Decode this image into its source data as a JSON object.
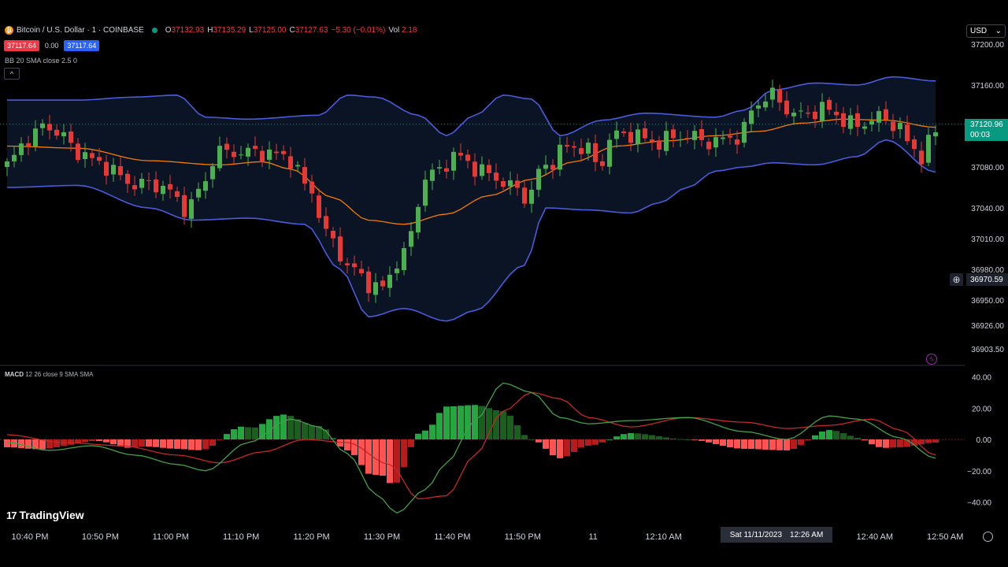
{
  "header": {
    "symbol": "Bitcoin / U.S. Dollar · 1 · COINBASE",
    "ohlc": [
      {
        "k": "O",
        "v": "37132.93"
      },
      {
        "k": "H",
        "v": "37135.29"
      },
      {
        "k": "L",
        "v": "37125.00"
      },
      {
        "k": "C",
        "v": "37127.63"
      }
    ],
    "change": "−5.30 (−0.01%)",
    "vol_label": "Vol",
    "vol_value": "2.18",
    "bid": "37117.64",
    "spread": "0.00",
    "ask": "37117.64",
    "bb_legend": "BB 20 SMA close 2.5 0",
    "collapse_glyph": "^",
    "macd_name": "MACD",
    "macd_params": "12 26 close 9 SMA SMA"
  },
  "currency": {
    "label": "USD",
    "chevron": "⌄"
  },
  "last_price": {
    "value": "37120.96",
    "countdown": "00:03"
  },
  "crosshair": {
    "price": "36970.59",
    "time": "Sat 11/11/2023",
    "clock": "12:26 AM"
  },
  "brand": {
    "logo": "17",
    "name": "TradingView"
  },
  "colors": {
    "up": "#4caf50",
    "down": "#e53935",
    "bb_band": "#4a5bdc",
    "bb_fill": "#0b1424",
    "bb_basis": "#f57c00",
    "macd_line": "#43a047",
    "signal_line": "#c62828",
    "hist_up_strong": "#26a641",
    "hist_up_weak": "#1b5e20",
    "hist_down_strong": "#ff5252",
    "hist_down_weak": "#b71c1c",
    "last_price_bg": "#089981"
  },
  "chart_data": [
    {
      "type": "candlestick",
      "title": "",
      "price_axis_ticks": [
        37200.0,
        37160.0,
        37120.0,
        37080.0,
        37040.0,
        37010.0,
        36980.0,
        36950.0,
        36926.0,
        36903.5
      ],
      "price_axis_labels": [
        "37200.00",
        "37160.00",
        "37120.00",
        "37080.00",
        "37040.00",
        "37010.00",
        "36980.00",
        "36950.00",
        "36926.00",
        "36903.50"
      ],
      "time_labels": [
        "10:40 PM",
        "10:50 PM",
        "11:00 PM",
        "11:10 PM",
        "11:20 PM",
        "11:30 PM",
        "11:40 PM",
        "11:50 PM",
        "11",
        "12:10 AM",
        "12:40 AM",
        "12:50 AM"
      ],
      "time_label_slots": [
        0,
        10,
        20,
        30,
        40,
        50,
        60,
        70,
        80,
        90,
        120,
        130
      ],
      "bb_basis_ctrl": [
        [
          0,
          37100
        ],
        [
          10,
          37098
        ],
        [
          20,
          37086
        ],
        [
          30,
          37082
        ],
        [
          36,
          37085
        ],
        [
          40,
          37078
        ],
        [
          46,
          37050
        ],
        [
          51,
          37028
        ],
        [
          56,
          37024
        ],
        [
          62,
          37034
        ],
        [
          68,
          37052
        ],
        [
          74,
          37068
        ],
        [
          80,
          37085
        ],
        [
          86,
          37100
        ],
        [
          93,
          37105
        ],
        [
          100,
          37110
        ],
        [
          106,
          37114
        ],
        [
          112,
          37122
        ],
        [
          118,
          37126
        ],
        [
          124,
          37125
        ],
        [
          131,
          37118
        ]
      ],
      "bb_upper_ctrl": [
        [
          0,
          37145
        ],
        [
          10,
          37145
        ],
        [
          18,
          37148
        ],
        [
          24,
          37150
        ],
        [
          28,
          37128
        ],
        [
          34,
          37126
        ],
        [
          44,
          37130
        ],
        [
          48,
          37150
        ],
        [
          52,
          37148
        ],
        [
          58,
          37130
        ],
        [
          62,
          37110
        ],
        [
          66,
          37130
        ],
        [
          70,
          37150
        ],
        [
          74,
          37146
        ],
        [
          78,
          37110
        ],
        [
          84,
          37125
        ],
        [
          90,
          37132
        ],
        [
          100,
          37128
        ],
        [
          104,
          37135
        ],
        [
          108,
          37155
        ],
        [
          114,
          37162
        ],
        [
          120,
          37160
        ],
        [
          125,
          37168
        ],
        [
          131,
          37164
        ]
      ],
      "bb_lower_ctrl": [
        [
          0,
          37060
        ],
        [
          10,
          37062
        ],
        [
          20,
          37040
        ],
        [
          26,
          37028
        ],
        [
          34,
          37030
        ],
        [
          42,
          37024
        ],
        [
          47,
          36980
        ],
        [
          51,
          36934
        ],
        [
          56,
          36942
        ],
        [
          62,
          36930
        ],
        [
          66,
          36940
        ],
        [
          73,
          36984
        ],
        [
          76,
          37040
        ],
        [
          82,
          37038
        ],
        [
          88,
          37035
        ],
        [
          92,
          37045
        ],
        [
          96,
          37060
        ],
        [
          100,
          37076
        ],
        [
          104,
          37080
        ],
        [
          108,
          37084
        ],
        [
          114,
          37082
        ],
        [
          120,
          37090
        ],
        [
          124,
          37106
        ],
        [
          131,
          37075
        ]
      ],
      "candles_ctrl": [
        [
          0,
          37080
        ],
        [
          4,
          37110
        ],
        [
          6,
          37120
        ],
        [
          8,
          37112
        ],
        [
          10,
          37096
        ],
        [
          14,
          37082
        ],
        [
          18,
          37064
        ],
        [
          22,
          37062
        ],
        [
          26,
          37040
        ],
        [
          28,
          37060
        ],
        [
          30,
          37094
        ],
        [
          36,
          37094
        ],
        [
          40,
          37090
        ],
        [
          43,
          37060
        ],
        [
          46,
          37010
        ],
        [
          49,
          36980
        ],
        [
          53,
          36960
        ],
        [
          56,
          36990
        ],
        [
          60,
          37072
        ],
        [
          64,
          37090
        ],
        [
          68,
          37074
        ],
        [
          72,
          37060
        ],
        [
          74,
          37050
        ],
        [
          76,
          37080
        ],
        [
          80,
          37100
        ],
        [
          82,
          37098
        ],
        [
          84,
          37082
        ],
        [
          86,
          37110
        ],
        [
          88,
          37112
        ],
        [
          92,
          37104
        ],
        [
          96,
          37110
        ],
        [
          100,
          37104
        ],
        [
          104,
          37110
        ],
        [
          106,
          37140
        ],
        [
          108,
          37150
        ],
        [
          112,
          37130
        ],
        [
          116,
          37136
        ],
        [
          120,
          37120
        ],
        [
          124,
          37128
        ],
        [
          126,
          37120
        ],
        [
          128,
          37100
        ],
        [
          130,
          37088
        ],
        [
          131,
          37115
        ]
      ]
    },
    {
      "type": "macd",
      "title": "",
      "axis_ticks": [
        40,
        20,
        0,
        -20,
        -40
      ],
      "axis_labels": [
        "40.00",
        "20.00",
        "0.00",
        "−20.00",
        "−40.00"
      ],
      "macd_ctrl": [
        [
          0,
          -2
        ],
        [
          6,
          -7
        ],
        [
          12,
          -4
        ],
        [
          18,
          -10
        ],
        [
          24,
          -16
        ],
        [
          28,
          -20
        ],
        [
          34,
          -2
        ],
        [
          40,
          13
        ],
        [
          44,
          8
        ],
        [
          48,
          -9
        ],
        [
          52,
          -35
        ],
        [
          55,
          -47
        ],
        [
          59,
          -32
        ],
        [
          62,
          -15
        ],
        [
          66,
          12
        ],
        [
          70,
          36
        ],
        [
          74,
          30
        ],
        [
          78,
          14
        ],
        [
          82,
          10
        ],
        [
          88,
          12
        ],
        [
          96,
          14
        ],
        [
          104,
          5
        ],
        [
          110,
          0
        ],
        [
          116,
          15
        ],
        [
          120,
          13
        ],
        [
          126,
          1
        ],
        [
          131,
          -12
        ]
      ],
      "signal_ctrl": [
        [
          0,
          3
        ],
        [
          8,
          -2
        ],
        [
          16,
          -4
        ],
        [
          24,
          -10
        ],
        [
          30,
          -15
        ],
        [
          36,
          -8
        ],
        [
          42,
          0
        ],
        [
          48,
          -2
        ],
        [
          54,
          -16
        ],
        [
          58,
          -38
        ],
        [
          62,
          -36
        ],
        [
          66,
          -10
        ],
        [
          70,
          18
        ],
        [
          74,
          30
        ],
        [
          78,
          26
        ],
        [
          82,
          14
        ],
        [
          88,
          8
        ],
        [
          96,
          14
        ],
        [
          104,
          11
        ],
        [
          110,
          7
        ],
        [
          116,
          9
        ],
        [
          122,
          13
        ],
        [
          126,
          6
        ],
        [
          131,
          -10
        ]
      ]
    }
  ]
}
